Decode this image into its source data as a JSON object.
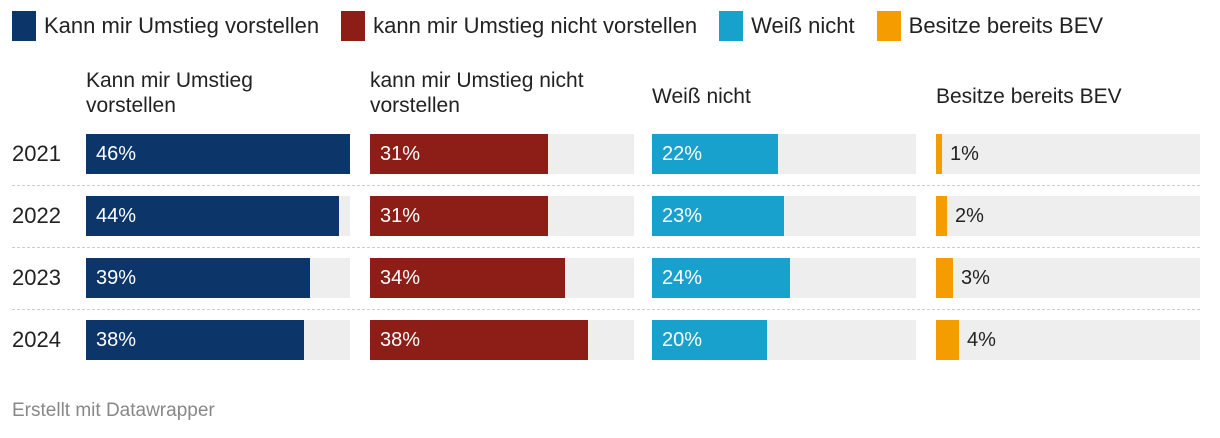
{
  "chart_data": {
    "type": "bar",
    "title": "",
    "categories": [
      "2021",
      "2022",
      "2023",
      "2024"
    ],
    "series": [
      {
        "name": "Kann mir Umstieg vorstellen",
        "header": "Kann mir Umstieg\nvorstellen",
        "color": "#0c3569",
        "values": [
          46,
          44,
          39,
          38
        ],
        "labels": [
          "46%",
          "44%",
          "39%",
          "38%"
        ]
      },
      {
        "name": "kann mir Umstieg nicht vorstellen",
        "header": "kann mir Umstieg nicht\nvorstellen",
        "color": "#8c1e17",
        "values": [
          31,
          31,
          34,
          38
        ],
        "labels": [
          "31%",
          "31%",
          "34%",
          "38%"
        ]
      },
      {
        "name": "Weiß nicht",
        "header": "Weiß nicht",
        "color": "#18a1cd",
        "values": [
          22,
          23,
          24,
          20
        ],
        "labels": [
          "22%",
          "23%",
          "24%",
          "20%"
        ]
      },
      {
        "name": "Besitze bereits BEV",
        "header": "Besitze bereits BEV",
        "color": "#f59c00",
        "values": [
          1,
          2,
          3,
          4
        ],
        "labels": [
          "1%",
          "2%",
          "3%",
          "4%"
        ]
      }
    ],
    "xlim": [
      0,
      46
    ],
    "legend": "top"
  },
  "footer": "Erstellt mit Datawrapper"
}
